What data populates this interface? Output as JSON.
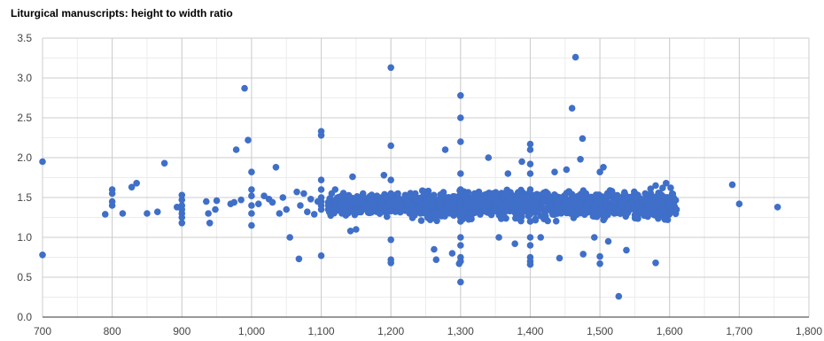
{
  "chart_data": {
    "type": "scatter",
    "title": "Liturgical manuscripts: height to width ratio",
    "xlabel": "",
    "ylabel": "",
    "xlim": [
      700,
      1800
    ],
    "ylim": [
      0,
      3.5
    ],
    "xticks": [
      "700",
      "800",
      "900",
      "1,000",
      "1,100",
      "1,200",
      "1,300",
      "1,400",
      "1,500",
      "1,600",
      "1,700",
      "1,800"
    ],
    "yticks": [
      "0.0",
      "0.5",
      "1.0",
      "1.5",
      "2.0",
      "2.5",
      "3.0",
      "3.5"
    ],
    "grid": true,
    "marker_color": "#3f6fc8",
    "points": [
      [
        700,
        1.95
      ],
      [
        700,
        0.78
      ],
      [
        790,
        1.29
      ],
      [
        800,
        1.6
      ],
      [
        800,
        1.55
      ],
      [
        800,
        1.45
      ],
      [
        800,
        1.4
      ],
      [
        815,
        1.3
      ],
      [
        828,
        1.63
      ],
      [
        835,
        1.68
      ],
      [
        850,
        1.3
      ],
      [
        865,
        1.32
      ],
      [
        875,
        1.93
      ],
      [
        893,
        1.38
      ],
      [
        900,
        1.53
      ],
      [
        900,
        1.47
      ],
      [
        900,
        1.4
      ],
      [
        900,
        1.35
      ],
      [
        900,
        1.3
      ],
      [
        900,
        1.25
      ],
      [
        900,
        1.18
      ],
      [
        935,
        1.45
      ],
      [
        938,
        1.3
      ],
      [
        940,
        1.18
      ],
      [
        948,
        1.35
      ],
      [
        950,
        1.46
      ],
      [
        970,
        1.42
      ],
      [
        975,
        1.44
      ],
      [
        978,
        2.1
      ],
      [
        985,
        1.47
      ],
      [
        990,
        2.87
      ],
      [
        995,
        2.22
      ],
      [
        1000,
        1.82
      ],
      [
        1000,
        1.6
      ],
      [
        1000,
        1.52
      ],
      [
        1000,
        1.4
      ],
      [
        1000,
        1.3
      ],
      [
        1000,
        1.15
      ],
      [
        1010,
        1.42
      ],
      [
        1018,
        1.52
      ],
      [
        1025,
        1.48
      ],
      [
        1030,
        1.44
      ],
      [
        1035,
        1.88
      ],
      [
        1040,
        1.3
      ],
      [
        1045,
        1.5
      ],
      [
        1050,
        1.35
      ],
      [
        1055,
        1.0
      ],
      [
        1065,
        1.57
      ],
      [
        1068,
        0.73
      ],
      [
        1070,
        1.4
      ],
      [
        1075,
        1.55
      ],
      [
        1080,
        1.32
      ],
      [
        1085,
        1.48
      ],
      [
        1090,
        1.29
      ],
      [
        1095,
        1.45
      ],
      [
        1100,
        2.33
      ],
      [
        1100,
        2.28
      ],
      [
        1100,
        1.72
      ],
      [
        1100,
        1.6
      ],
      [
        1100,
        1.5
      ],
      [
        1100,
        1.45
      ],
      [
        1100,
        1.4
      ],
      [
        1100,
        1.35
      ],
      [
        1100,
        0.77
      ],
      [
        1110,
        1.44
      ],
      [
        1115,
        1.55
      ],
      [
        1120,
        1.6
      ],
      [
        1125,
        1.5
      ],
      [
        1130,
        1.42
      ],
      [
        1135,
        1.35
      ],
      [
        1140,
        1.52
      ],
      [
        1142,
        1.08
      ],
      [
        1145,
        1.76
      ],
      [
        1150,
        1.1
      ],
      [
        1155,
        1.45
      ],
      [
        1160,
        1.55
      ],
      [
        1165,
        1.38
      ],
      [
        1170,
        1.48
      ],
      [
        1175,
        1.42
      ],
      [
        1180,
        1.52
      ],
      [
        1185,
        1.46
      ],
      [
        1190,
        1.78
      ],
      [
        1192,
        1.5
      ],
      [
        1195,
        1.4
      ],
      [
        1200,
        3.13
      ],
      [
        1200,
        2.15
      ],
      [
        1200,
        1.72
      ],
      [
        1200,
        1.55
      ],
      [
        1200,
        1.45
      ],
      [
        1200,
        1.35
      ],
      [
        1200,
        0.97
      ],
      [
        1200,
        0.72
      ],
      [
        1200,
        0.68
      ],
      [
        1210,
        1.55
      ],
      [
        1215,
        1.42
      ],
      [
        1220,
        1.5
      ],
      [
        1225,
        1.45
      ],
      [
        1230,
        1.38
      ],
      [
        1235,
        1.55
      ],
      [
        1240,
        1.48
      ],
      [
        1245,
        1.42
      ],
      [
        1250,
        1.35
      ],
      [
        1255,
        1.5
      ],
      [
        1260,
        1.45
      ],
      [
        1262,
        0.85
      ],
      [
        1265,
        0.72
      ],
      [
        1270,
        1.4
      ],
      [
        1275,
        1.55
      ],
      [
        1278,
        2.1
      ],
      [
        1280,
        1.42
      ],
      [
        1285,
        1.38
      ],
      [
        1288,
        0.8
      ],
      [
        1290,
        1.5
      ],
      [
        1295,
        1.45
      ],
      [
        1298,
        0.67
      ],
      [
        1300,
        2.78
      ],
      [
        1300,
        2.5
      ],
      [
        1300,
        2.2
      ],
      [
        1300,
        1.8
      ],
      [
        1300,
        1.6
      ],
      [
        1300,
        1.55
      ],
      [
        1300,
        1.5
      ],
      [
        1300,
        1.45
      ],
      [
        1300,
        1.4
      ],
      [
        1300,
        1.35
      ],
      [
        1300,
        1.3
      ],
      [
        1300,
        1.2
      ],
      [
        1300,
        1.0
      ],
      [
        1300,
        0.9
      ],
      [
        1300,
        0.75
      ],
      [
        1300,
        0.7
      ],
      [
        1300,
        0.44
      ],
      [
        1305,
        1.5
      ],
      [
        1310,
        1.45
      ],
      [
        1315,
        1.38
      ],
      [
        1320,
        1.55
      ],
      [
        1325,
        1.42
      ],
      [
        1330,
        1.48
      ],
      [
        1335,
        1.35
      ],
      [
        1340,
        2.0
      ],
      [
        1345,
        1.5
      ],
      [
        1350,
        1.45
      ],
      [
        1355,
        1.0
      ],
      [
        1360,
        1.4
      ],
      [
        1365,
        1.55
      ],
      [
        1368,
        1.8
      ],
      [
        1370,
        1.45
      ],
      [
        1375,
        1.38
      ],
      [
        1378,
        0.92
      ],
      [
        1380,
        1.5
      ],
      [
        1385,
        1.42
      ],
      [
        1388,
        1.95
      ],
      [
        1390,
        1.48
      ],
      [
        1395,
        1.35
      ],
      [
        1400,
        2.17
      ],
      [
        1400,
        2.1
      ],
      [
        1400,
        1.92
      ],
      [
        1400,
        1.8
      ],
      [
        1400,
        1.6
      ],
      [
        1400,
        1.55
      ],
      [
        1400,
        1.5
      ],
      [
        1400,
        1.45
      ],
      [
        1400,
        1.4
      ],
      [
        1400,
        1.35
      ],
      [
        1400,
        1.3
      ],
      [
        1400,
        1.2
      ],
      [
        1400,
        1.0
      ],
      [
        1400,
        0.9
      ],
      [
        1400,
        0.75
      ],
      [
        1400,
        0.7
      ],
      [
        1400,
        0.66
      ],
      [
        1410,
        1.5
      ],
      [
        1415,
        1.0
      ],
      [
        1420,
        1.45
      ],
      [
        1425,
        1.55
      ],
      [
        1430,
        1.38
      ],
      [
        1435,
        1.82
      ],
      [
        1440,
        1.42
      ],
      [
        1442,
        0.74
      ],
      [
        1445,
        1.5
      ],
      [
        1450,
        1.45
      ],
      [
        1452,
        1.85
      ],
      [
        1455,
        1.35
      ],
      [
        1460,
        2.62
      ],
      [
        1463,
        1.5
      ],
      [
        1465,
        3.26
      ],
      [
        1470,
        1.42
      ],
      [
        1472,
        1.98
      ],
      [
        1475,
        2.24
      ],
      [
        1476,
        0.79
      ],
      [
        1480,
        1.55
      ],
      [
        1485,
        1.45
      ],
      [
        1490,
        1.38
      ],
      [
        1492,
        1.0
      ],
      [
        1495,
        1.5
      ],
      [
        1500,
        1.45
      ],
      [
        1500,
        1.82
      ],
      [
        1500,
        0.76
      ],
      [
        1500,
        0.67
      ],
      [
        1505,
        1.88
      ],
      [
        1510,
        1.52
      ],
      [
        1512,
        0.95
      ],
      [
        1515,
        1.38
      ],
      [
        1520,
        1.45
      ],
      [
        1525,
        1.5
      ],
      [
        1527,
        0.26
      ],
      [
        1530,
        1.42
      ],
      [
        1535,
        1.48
      ],
      [
        1538,
        0.84
      ],
      [
        1540,
        1.38
      ],
      [
        1545,
        1.45
      ],
      [
        1550,
        1.5
      ],
      [
        1555,
        1.4
      ],
      [
        1560,
        1.46
      ],
      [
        1565,
        1.55
      ],
      [
        1570,
        1.42
      ],
      [
        1575,
        1.38
      ],
      [
        1580,
        1.65
      ],
      [
        1580,
        0.68
      ],
      [
        1585,
        1.45
      ],
      [
        1590,
        1.62
      ],
      [
        1595,
        1.68
      ],
      [
        1600,
        1.45
      ],
      [
        1600,
        1.38
      ],
      [
        1605,
        1.4
      ],
      [
        1610,
        1.35
      ],
      [
        1690,
        1.66
      ],
      [
        1700,
        1.42
      ],
      [
        1755,
        1.38
      ]
    ]
  }
}
